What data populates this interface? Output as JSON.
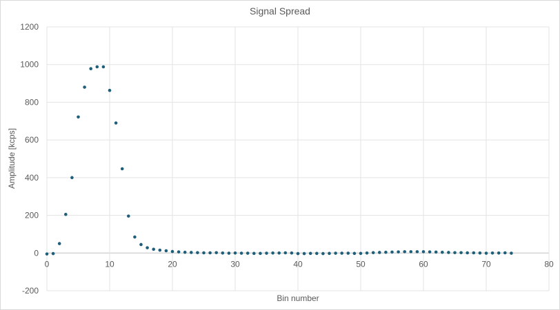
{
  "chart_data": {
    "type": "scatter",
    "title": "Signal Spread",
    "xlabel": "Bin number",
    "ylabel": "Amplitude [kcps]",
    "xlim": [
      0,
      80
    ],
    "ylim": [
      -200,
      1200
    ],
    "x_ticks": [
      0,
      10,
      20,
      30,
      40,
      50,
      60,
      70,
      80
    ],
    "y_ticks": [
      -200,
      0,
      200,
      400,
      600,
      800,
      1000,
      1200
    ],
    "grid": true,
    "legend": "none",
    "marker_color": "#1f5f7a",
    "series": [
      {
        "x": [
          0,
          1,
          2,
          3,
          4,
          5,
          6,
          7,
          8,
          9,
          10,
          11,
          12,
          13,
          14,
          15,
          16,
          17,
          18,
          19,
          20,
          21,
          22,
          23,
          24,
          25,
          26,
          27,
          28,
          29,
          30,
          31,
          32,
          33,
          34,
          35,
          36,
          37,
          38,
          39,
          40,
          41,
          42,
          43,
          44,
          45,
          46,
          47,
          48,
          49,
          50,
          51,
          52,
          53,
          54,
          55,
          56,
          57,
          58,
          59,
          60,
          61,
          62,
          63,
          64,
          65,
          66,
          67,
          68,
          69,
          70,
          71,
          72,
          73,
          74
        ],
        "y": [
          -5,
          -3,
          50,
          205,
          400,
          722,
          880,
          978,
          988,
          988,
          863,
          690,
          447,
          196,
          85,
          45,
          28,
          20,
          15,
          12,
          8,
          6,
          4,
          3,
          2,
          1,
          1,
          2,
          0,
          -1,
          0,
          -1,
          -1,
          -2,
          -2,
          -1,
          0,
          0,
          1,
          0,
          -3,
          -3,
          -2,
          -2,
          -3,
          -2,
          -1,
          -1,
          -1,
          -2,
          -2,
          0,
          2,
          3,
          4,
          5,
          6,
          7,
          7,
          7,
          7,
          6,
          5,
          4,
          3,
          2,
          2,
          1,
          1,
          0,
          -1,
          0,
          0,
          1,
          -1
        ]
      }
    ]
  }
}
